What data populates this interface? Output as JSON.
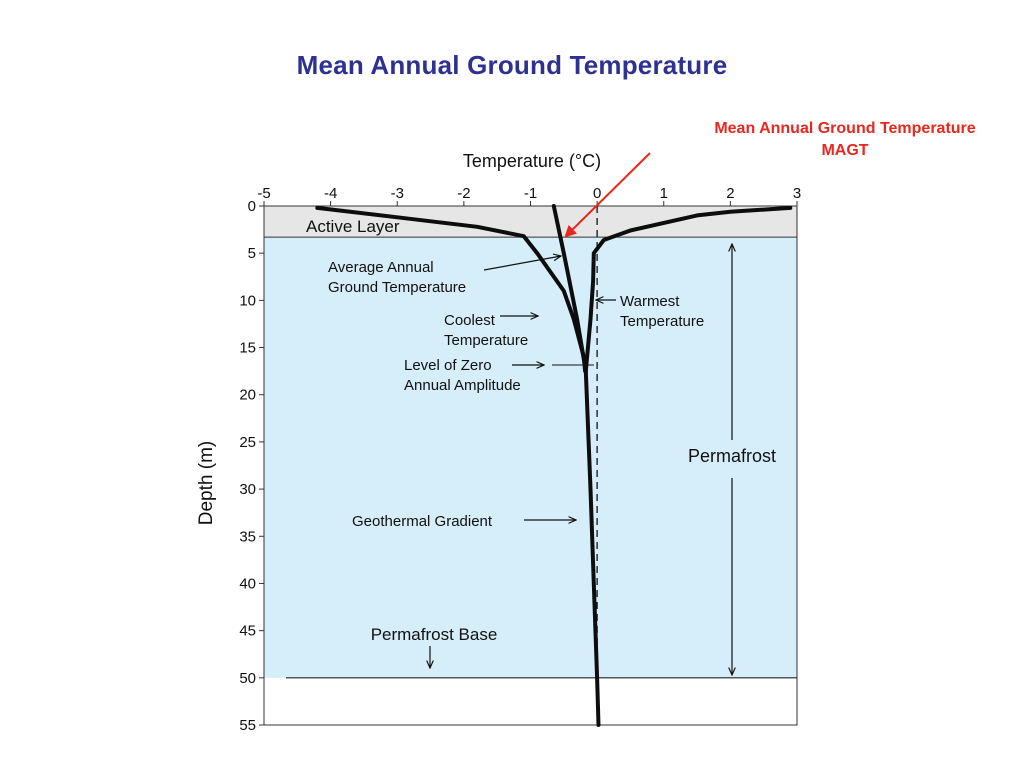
{
  "slide": {
    "title": "Mean Annual Ground Temperature",
    "callout_line1": "Mean Annual Ground Temperature",
    "callout_line2": "MAGT",
    "callout_color": "#e8281e",
    "title_color": "#2e3192"
  },
  "diagram": {
    "x_axis_title": "Temperature (°C)",
    "y_axis_title": "Depth (m)",
    "x_ticks": [
      "-5",
      "-4",
      "-3",
      "-2",
      "-1",
      "0",
      "1",
      "2",
      "3"
    ],
    "y_ticks": [
      "0",
      "5",
      "10",
      "15",
      "20",
      "25",
      "30",
      "35",
      "40",
      "45",
      "50",
      "55"
    ],
    "x_range": [
      -5,
      3
    ],
    "y_range": [
      0,
      55
    ],
    "active_layer_label": "Active Layer",
    "active_layer_depth_m": 3.3,
    "permafrost_base_depth_m": 50,
    "active_layer_color": "#e6e6e6",
    "permafrost_color": "#d6eefa",
    "labels": {
      "avg_line1": "Average Annual",
      "avg_line2": "Ground Temperature",
      "coolest_line1": "Coolest",
      "coolest_line2": "Temperature",
      "zero_line1": "Level of Zero",
      "zero_line2": "Annual Amplitude",
      "warmest_line1": "Warmest",
      "warmest_line2": "Temperature",
      "gradient": "Geothermal Gradient",
      "permafrost": "Permafrost",
      "base": "Permafrost Base"
    }
  },
  "chart_data": {
    "type": "line",
    "xlabel": "Temperature (°C)",
    "ylabel": "Depth (m)",
    "xlim": [
      -5,
      3
    ],
    "ylim": [
      0,
      55
    ],
    "y_inverted": true,
    "series": [
      {
        "name": "Coolest Temperature",
        "points": [
          [
            -4.2,
            0.2
          ],
          [
            -3.0,
            1.2
          ],
          [
            -1.8,
            2.2
          ],
          [
            -1.1,
            3.2
          ],
          [
            -0.9,
            5.0
          ],
          [
            -0.5,
            9.0
          ],
          [
            -0.35,
            12.0
          ],
          [
            -0.2,
            16.0
          ],
          [
            -0.18,
            17.5
          ]
        ]
      },
      {
        "name": "Warmest Temperature",
        "points": [
          [
            2.9,
            0.2
          ],
          [
            2.0,
            0.6
          ],
          [
            1.5,
            1.0
          ],
          [
            0.5,
            2.6
          ],
          [
            0.1,
            3.6
          ],
          [
            -0.05,
            5.0
          ],
          [
            -0.06,
            8.0
          ],
          [
            -0.1,
            12.0
          ],
          [
            -0.17,
            17.5
          ]
        ]
      },
      {
        "name": "Average Annual Ground Temperature",
        "points": [
          [
            -0.65,
            0.0
          ],
          [
            -0.5,
            5.0
          ],
          [
            -0.3,
            12.0
          ],
          [
            -0.17,
            17.5
          ]
        ]
      },
      {
        "name": "Geothermal Gradient",
        "points": [
          [
            -0.17,
            17.5
          ],
          [
            -0.1,
            30.0
          ],
          [
            -0.05,
            40.0
          ],
          [
            0.0,
            50.0
          ],
          [
            0.02,
            55.0
          ]
        ]
      }
    ]
  }
}
